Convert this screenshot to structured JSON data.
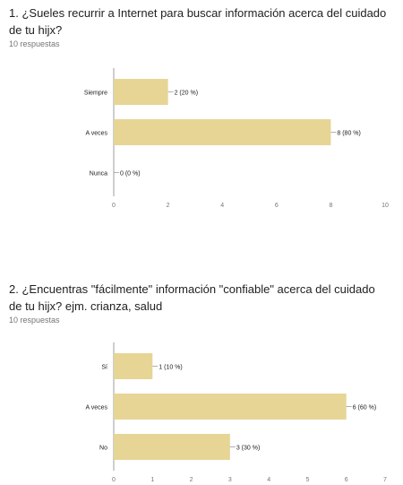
{
  "questions": [
    {
      "title": "1. ¿Sueles recurrir a Internet para buscar información acerca del cuidado de tu hijx?",
      "responses": "10 respuestas"
    },
    {
      "title": "2. ¿Encuentras \"fácilmente\" información \"confiable\" acerca del cuidado de tu hijx? ejm. crianza, salud",
      "responses": "10 respuestas"
    }
  ],
  "colors": {
    "bar": "#e6d595",
    "axis": "#9e9e9e",
    "grid": "#e0e0e0",
    "text": "#212121",
    "muted": "#757575"
  },
  "chart_data": [
    {
      "type": "bar",
      "orientation": "horizontal",
      "categories": [
        "Siempre",
        "A veces",
        "Nunca"
      ],
      "values": [
        2,
        8,
        0
      ],
      "data_labels": [
        "2 (20 %)",
        "8 (80 %)",
        "0 (0 %)"
      ],
      "xlim": [
        0,
        10
      ],
      "xticks": [
        0,
        2,
        4,
        6,
        8,
        10
      ],
      "grid": false
    },
    {
      "type": "bar",
      "orientation": "horizontal",
      "categories": [
        "Sí",
        "A veces",
        "No"
      ],
      "values": [
        1,
        6,
        3
      ],
      "data_labels": [
        "1 (10 %)",
        "6 (60 %)",
        "3 (30 %)"
      ],
      "xlim": [
        0,
        7
      ],
      "xticks": [
        0,
        1,
        2,
        3,
        4,
        5,
        6,
        7
      ],
      "grid": false
    }
  ]
}
